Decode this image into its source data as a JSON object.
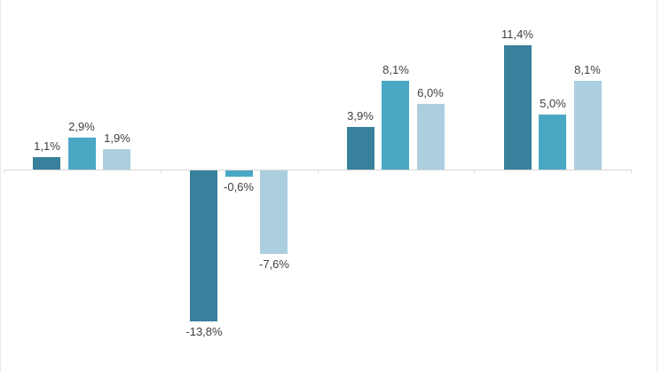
{
  "chart_data": {
    "type": "bar",
    "title": "",
    "xlabel": "",
    "ylabel": "",
    "categories": [
      "",
      "",
      "",
      ""
    ],
    "series": [
      {
        "name": "series-dark-teal",
        "color": "#38809b",
        "values": [
          1.1,
          -13.8,
          3.9,
          11.4
        ],
        "labels": [
          "1,1%",
          "-13,8%",
          "3,9%",
          "11,4%"
        ]
      },
      {
        "name": "series-medium-teal",
        "color": "#4aa8c5",
        "values": [
          2.9,
          -0.6,
          8.1,
          5.0
        ],
        "labels": [
          "2,9%",
          "-0,6%",
          "8,1%",
          "5,0%"
        ]
      },
      {
        "name": "series-light-blue",
        "color": "#accfe0",
        "values": [
          1.9,
          -7.6,
          6.0,
          8.1
        ],
        "labels": [
          "1,9%",
          "-7,6%",
          "6,0%",
          "8,1%"
        ]
      }
    ],
    "value_format": "european-percent-one-decimal",
    "ylim": [
      -18.5,
      15.5
    ],
    "grid": false,
    "legend": false,
    "axis_color": "#d9d9d9",
    "label_color": "#404040",
    "background_color": "#ffffff",
    "frame_border_color": "#e8e8e8"
  }
}
